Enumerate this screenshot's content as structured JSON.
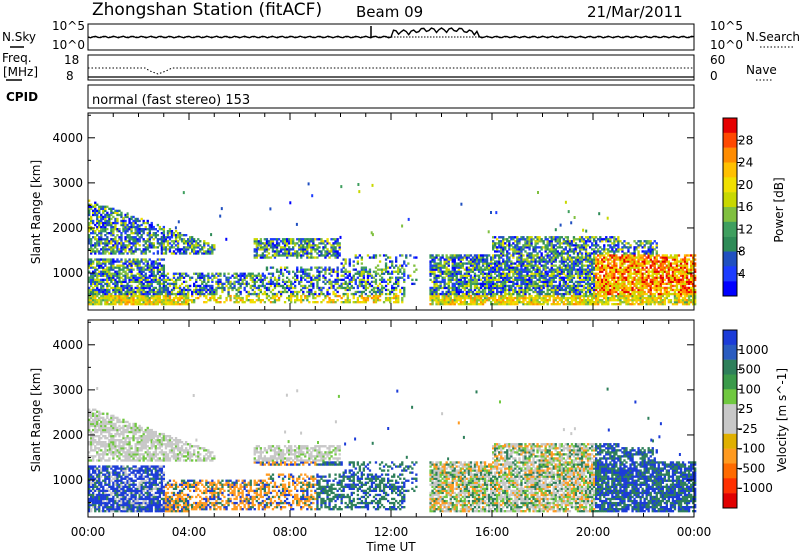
{
  "header": {
    "station": "Zhongshan Station (fitACF)",
    "beam": "Beam 09",
    "date": "21/Mar/2011"
  },
  "noise_panel": {
    "left_label": "N.Sky",
    "right_label": "N.Search",
    "left_ticks": [
      "10^5",
      "10^0"
    ],
    "right_ticks": [
      "10^5",
      "10^0"
    ]
  },
  "freq_panel": {
    "left_label_1": "Freq.",
    "left_label_2": "[MHz]",
    "right_label": "Nave",
    "left_ticks": [
      "18",
      "8"
    ],
    "right_ticks": [
      "60",
      "0"
    ]
  },
  "cpid_panel": {
    "label": "CPID",
    "text": "normal (fast stereo) 153"
  },
  "chart_data": [
    {
      "type": "heatmap",
      "name": "power",
      "ylabel": "Slant Range [km]",
      "ylim": [
        180,
        4550
      ],
      "yticks": [
        1000,
        2000,
        3000,
        4000
      ],
      "xlim_hours": [
        0,
        24
      ],
      "colorbar": {
        "label": "Power [dB]",
        "ticks": [
          "28",
          "24",
          "20",
          "16",
          "12",
          "8",
          "4"
        ],
        "colors": [
          "#e60000",
          "#ff4800",
          "#ff8c00",
          "#ffc000",
          "#f0e000",
          "#c8d800",
          "#80c040",
          "#3f9f5f",
          "#2e8b57",
          "#2050c0",
          "#1c3cff",
          "#0000ff"
        ]
      }
    },
    {
      "type": "heatmap",
      "name": "velocity",
      "ylabel": "Slant Range [km]",
      "ylim": [
        180,
        4550
      ],
      "yticks": [
        1000,
        2000,
        3000,
        4000
      ],
      "xlim_hours": [
        0,
        24
      ],
      "colorbar": {
        "label": "Velocity [m s^-1]",
        "ticks": [
          "1000",
          "500",
          "100",
          "25",
          "-25",
          "-100",
          "-500",
          "-1000"
        ],
        "colors": [
          "#1c3cd8",
          "#2a5cc0",
          "#2e7f5a",
          "#3a9a4a",
          "#70c840",
          "#c8c8c8",
          "#c8c8c8",
          "#e0b000",
          "#ff9a20",
          "#ff6a00",
          "#ff3000",
          "#e00000"
        ]
      }
    }
  ],
  "time_axis": {
    "ticks": [
      "00:00",
      "04:00",
      "08:00",
      "12:00",
      "16:00",
      "20:00",
      "00:00"
    ],
    "label": "Time UT"
  }
}
